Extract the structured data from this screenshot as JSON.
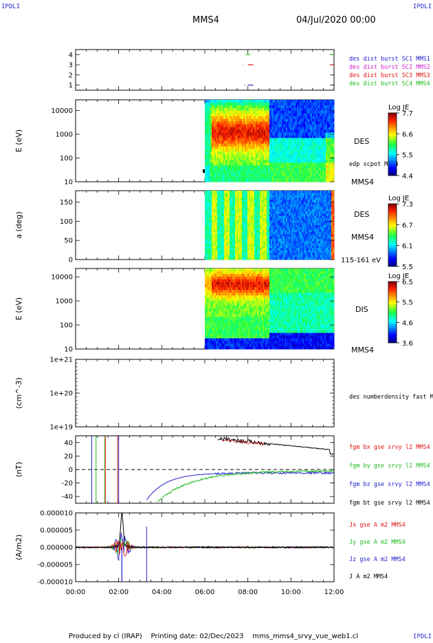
{
  "corners": {
    "top_left": "IPDLI",
    "top_right": "IPDLI",
    "bottom_right": "IPDLI"
  },
  "header": {
    "spacecraft": "MMS4",
    "datetime": "04/Jul/2020 00:00"
  },
  "footer": {
    "produced_by": "Produced by cl (IRAP)",
    "printing_date": "Printing date: 02/Dec/2023",
    "filename": "mms_mms4_srvy_vue_web1.cl"
  },
  "chart_data": [
    {
      "type": "scatter",
      "panel": "burst",
      "ylabels": [
        "4",
        "3",
        "2",
        "1"
      ],
      "ylim": [
        0.5,
        4.5
      ],
      "legend": [
        {
          "text": "des dist burst SC1 MMS1",
          "color": "#2222cc"
        },
        {
          "text": "des dist burst SC2 MMS2",
          "color": "#cc22cc"
        },
        {
          "text": "des dist burst SC3 MMS3",
          "color": "#dd1111"
        },
        {
          "text": "des dist burst SC4 MMS4",
          "color": "#22bb22"
        }
      ],
      "segments": [
        {
          "sc": 4,
          "t": [
            7.9,
            8.1
          ],
          "color": "#22bb22"
        },
        {
          "sc": 3,
          "t": [
            7.8,
            7.82
          ],
          "color": "#dd1111"
        },
        {
          "sc": 3,
          "t": [
            8.0,
            8.25
          ],
          "color": "#dd1111"
        },
        {
          "sc": 1,
          "t": [
            7.85,
            7.88
          ],
          "color": "#2222cc"
        },
        {
          "sc": 1,
          "t": [
            8.0,
            8.25
          ],
          "color": "#2222cc"
        },
        {
          "sc": 4,
          "t": [
            11.85,
            12.0
          ],
          "color": "#22bb22"
        },
        {
          "sc": 3,
          "t": [
            11.85,
            12.0
          ],
          "color": "#dd1111"
        }
      ]
    },
    {
      "type": "heatmap",
      "panel": "des_energy",
      "ylabel": "E (eV)",
      "yticks": [
        "10000",
        "1000",
        "100",
        "10"
      ],
      "yscale": "log",
      "label": "DES",
      "sub": "MMS4",
      "extra": "edp scpot MMS4",
      "cbar_title": "Log JE",
      "cbar_ticks": [
        "7.7",
        "6.6",
        "5.5",
        "4.4"
      ]
    },
    {
      "type": "heatmap",
      "panel": "des_pitch",
      "ylabel": "a (deg)",
      "yticks": [
        "150",
        "100",
        "50",
        "0"
      ],
      "ylim": [
        0,
        180
      ],
      "label": "DES",
      "sub": "MMS4",
      "extra": "115-161 eV",
      "cbar_title": "Log JE",
      "cbar_ticks": [
        "7.3",
        "6.7",
        "6.1",
        "5.5"
      ]
    },
    {
      "type": "heatmap",
      "panel": "dis_energy",
      "ylabel": "E (eV)",
      "yticks": [
        "10000",
        "1000",
        "100",
        "10"
      ],
      "yscale": "log",
      "label": "DIS",
      "sub": "MMS4",
      "cbar_title": "Log JE",
      "cbar_ticks": [
        "6.5",
        "5.5",
        "4.6",
        "3.6"
      ]
    },
    {
      "type": "line",
      "panel": "density",
      "ylabel": "(cm^-3)",
      "yticks": [
        "1e+21",
        "1e+20",
        "1e+19"
      ],
      "yscale": "log",
      "legend": [
        {
          "text": "des numberdensity fast M",
          "color": "#000000"
        }
      ]
    },
    {
      "type": "line",
      "panel": "fgm",
      "ylabel": "(nT)",
      "yticks": [
        "40",
        "20",
        "0",
        "-20",
        "-40"
      ],
      "ylim": [
        -50,
        50
      ],
      "legend": [
        {
          "text": "fgm bx gse srvy l2 MMS4",
          "color": "#dd1111"
        },
        {
          "text": "fgm by gse srvy l2 MMS4",
          "color": "#22bb22"
        },
        {
          "text": "fgm bz gse srvy l2 MMS4",
          "color": "#2222cc"
        },
        {
          "text": "fgm bt gse srvy l2 MMS4",
          "color": "#000000"
        }
      ]
    },
    {
      "type": "line",
      "panel": "current",
      "ylabel": "(A/m2)",
      "yticks": [
        "0.000010",
        "0.000005",
        "0.000000",
        "-0.000005",
        "-0.000010"
      ],
      "ylim": [
        -1e-05,
        1e-05
      ],
      "legend": [
        {
          "text": "Jx gse A m2 MMS4",
          "color": "#dd1111"
        },
        {
          "text": "Jy gse A m2 MMS4",
          "color": "#22bb22"
        },
        {
          "text": "Jz gse A m2 MMS4",
          "color": "#2222cc"
        },
        {
          "text": "J A m2 MMS4",
          "color": "#000000"
        }
      ]
    }
  ],
  "xaxis": {
    "ticks": [
      "00:00",
      "02:00",
      "04:00",
      "06:00",
      "08:00",
      "10:00",
      "12:00"
    ],
    "xlim": [
      0,
      12
    ],
    "unit": "hours"
  }
}
